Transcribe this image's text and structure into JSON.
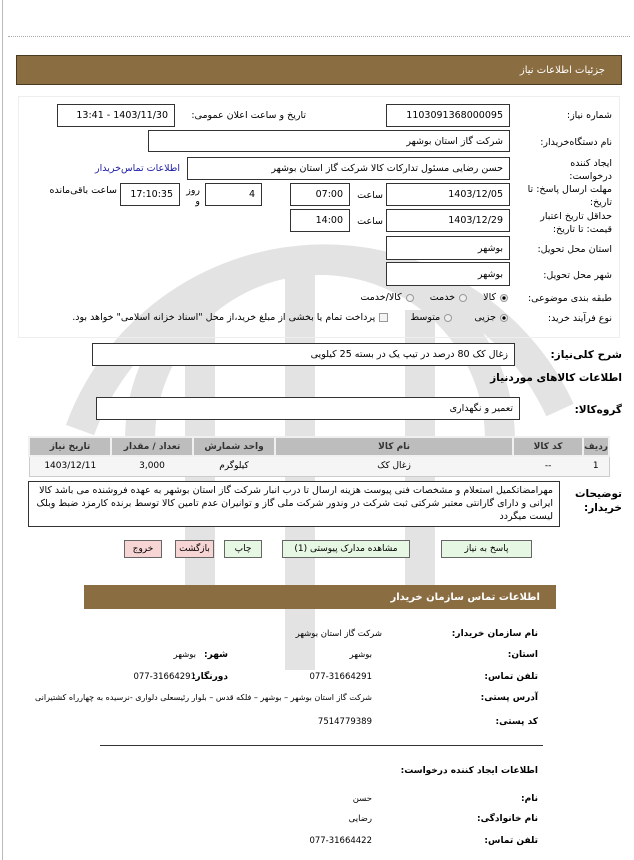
{
  "header": {
    "title": "جزئیات اطلاعات نیاز"
  },
  "form": {
    "need_number_label": "شماره نیاز:",
    "need_number": "1103091368000095",
    "announce_label": "تاریخ و ساعت اعلان عمومی:",
    "announce_value": "1403/11/30 - 13:41",
    "buyer_org_label": "نام دستگاه‌خریدار:",
    "buyer_org": "شرکت گاز استان بوشهر",
    "creator_label": "ایجاد کننده درخواست:",
    "creator": "حسن  رضایی مسئول تدارکات کالا شرکت گاز استان بوشهر",
    "contact_link": "اطلاعات تماس‌خریدار",
    "deadline_label": "مهلت ارسال پاسخ: تا تاریخ:",
    "deadline_date": "1403/12/05",
    "time_label": "ساعت",
    "deadline_time": "07:00",
    "days_value": "4",
    "days_label": "روز و",
    "remaining_value": "17:10:35",
    "remaining_label": "ساعت باقی‌مانده",
    "validity_label": "حداقل تاریخ اعتبار قیمت: تا تاریخ:",
    "validity_date": "1403/12/29",
    "validity_time": "14:00",
    "province_label": "استان محل تحویل:",
    "province": "بوشهر",
    "city_label": "شهر محل تحویل:",
    "city": "بوشهر",
    "category_label": "طبقه بندی موضوعی:",
    "category_options": [
      "کالا",
      "خدمت",
      "کالا/خدمت"
    ],
    "category_selected": "کالا",
    "process_label": "نوع فرآیند خرید:",
    "process_options": [
      "جزیی",
      "متوسط"
    ],
    "process_selected": "جزیی",
    "payment_note": "پرداخت تمام یا بخشی از مبلغ خرید،از محل \"اسناد خزانه اسلامی\" خواهد بود.",
    "description_label": "شرح کلی‌نیاز:",
    "description": "زغال کک 80 درصد در تیپ یک در بسته 25 کیلویی",
    "goods_title": "اطلاعات کالاهای موردنیاز",
    "group_label": "گروه‌کالا:",
    "group": "تعمیر و نگهداری"
  },
  "table": {
    "headers": [
      "ردیف",
      "کد کالا",
      "نام کالا",
      "واحد شمارش",
      "تعداد / مقدار",
      "تاریخ نیاز"
    ],
    "rows": [
      [
        "1",
        "--",
        "زغال کک",
        "کیلوگرم",
        "3,000",
        "1403/12/11"
      ]
    ]
  },
  "notes": {
    "label": "توضیحات خریدار:",
    "text": "مهرامضاتکمیل استعلام و مشخصات فنی پیوست هزینه ارسال تا درب انبار شرکت گاز استان بوشهر به عهده فروشنده می باشد کالا ایرانی و دارای گارانتی معتبر شرکتی ثبت شرکت در وندور شرکت ملی گاز و توانیران عدم تامین کالا توسط برنده کارمزد ضبط وبلک لیست میگردد"
  },
  "buttons": {
    "reply": "پاسخ به نیاز",
    "attachments": "مشاهده مدارک پیوستی (1)",
    "print": "چاپ",
    "back": "بازگشت",
    "exit": "خروج"
  },
  "contact": {
    "title": "اطلاعات تماس سازمان خریدار",
    "org_label": "نام سازمان خریدار:",
    "org": "شرکت گاز استان بوشهر",
    "province_label": "استان:",
    "province": "بوشهر",
    "city_label": "شهر:",
    "city": "بوشهر",
    "phone_label": "تلفن تماس:",
    "phone": "077-31664291",
    "fax_label": "دورنگار:",
    "fax": "077-31664291",
    "address_label": "آدرس پستی:",
    "address": "شرکت گاز استان بوشهر – بوشهر – فلکه قدس – بلوار رئیسعلی دلواری -نرسیده به چهارراه کشتیرانی",
    "postal_label": "کد پستی:",
    "postal": "7514779389",
    "creator_title": "اطلاعات ایجاد کننده درخواست:",
    "name_label": "نام:",
    "name": "حسن",
    "family_label": "نام خانوادگی:",
    "family": "رضایی",
    "creator_phone_label": "تلفن تماس:",
    "creator_phone": "077-31664422"
  },
  "colors": {
    "header_bar": "#8b6d42",
    "link": "#1a1aa6",
    "green_button": "#e6f7e3",
    "red_button": "#f7d5d5"
  }
}
